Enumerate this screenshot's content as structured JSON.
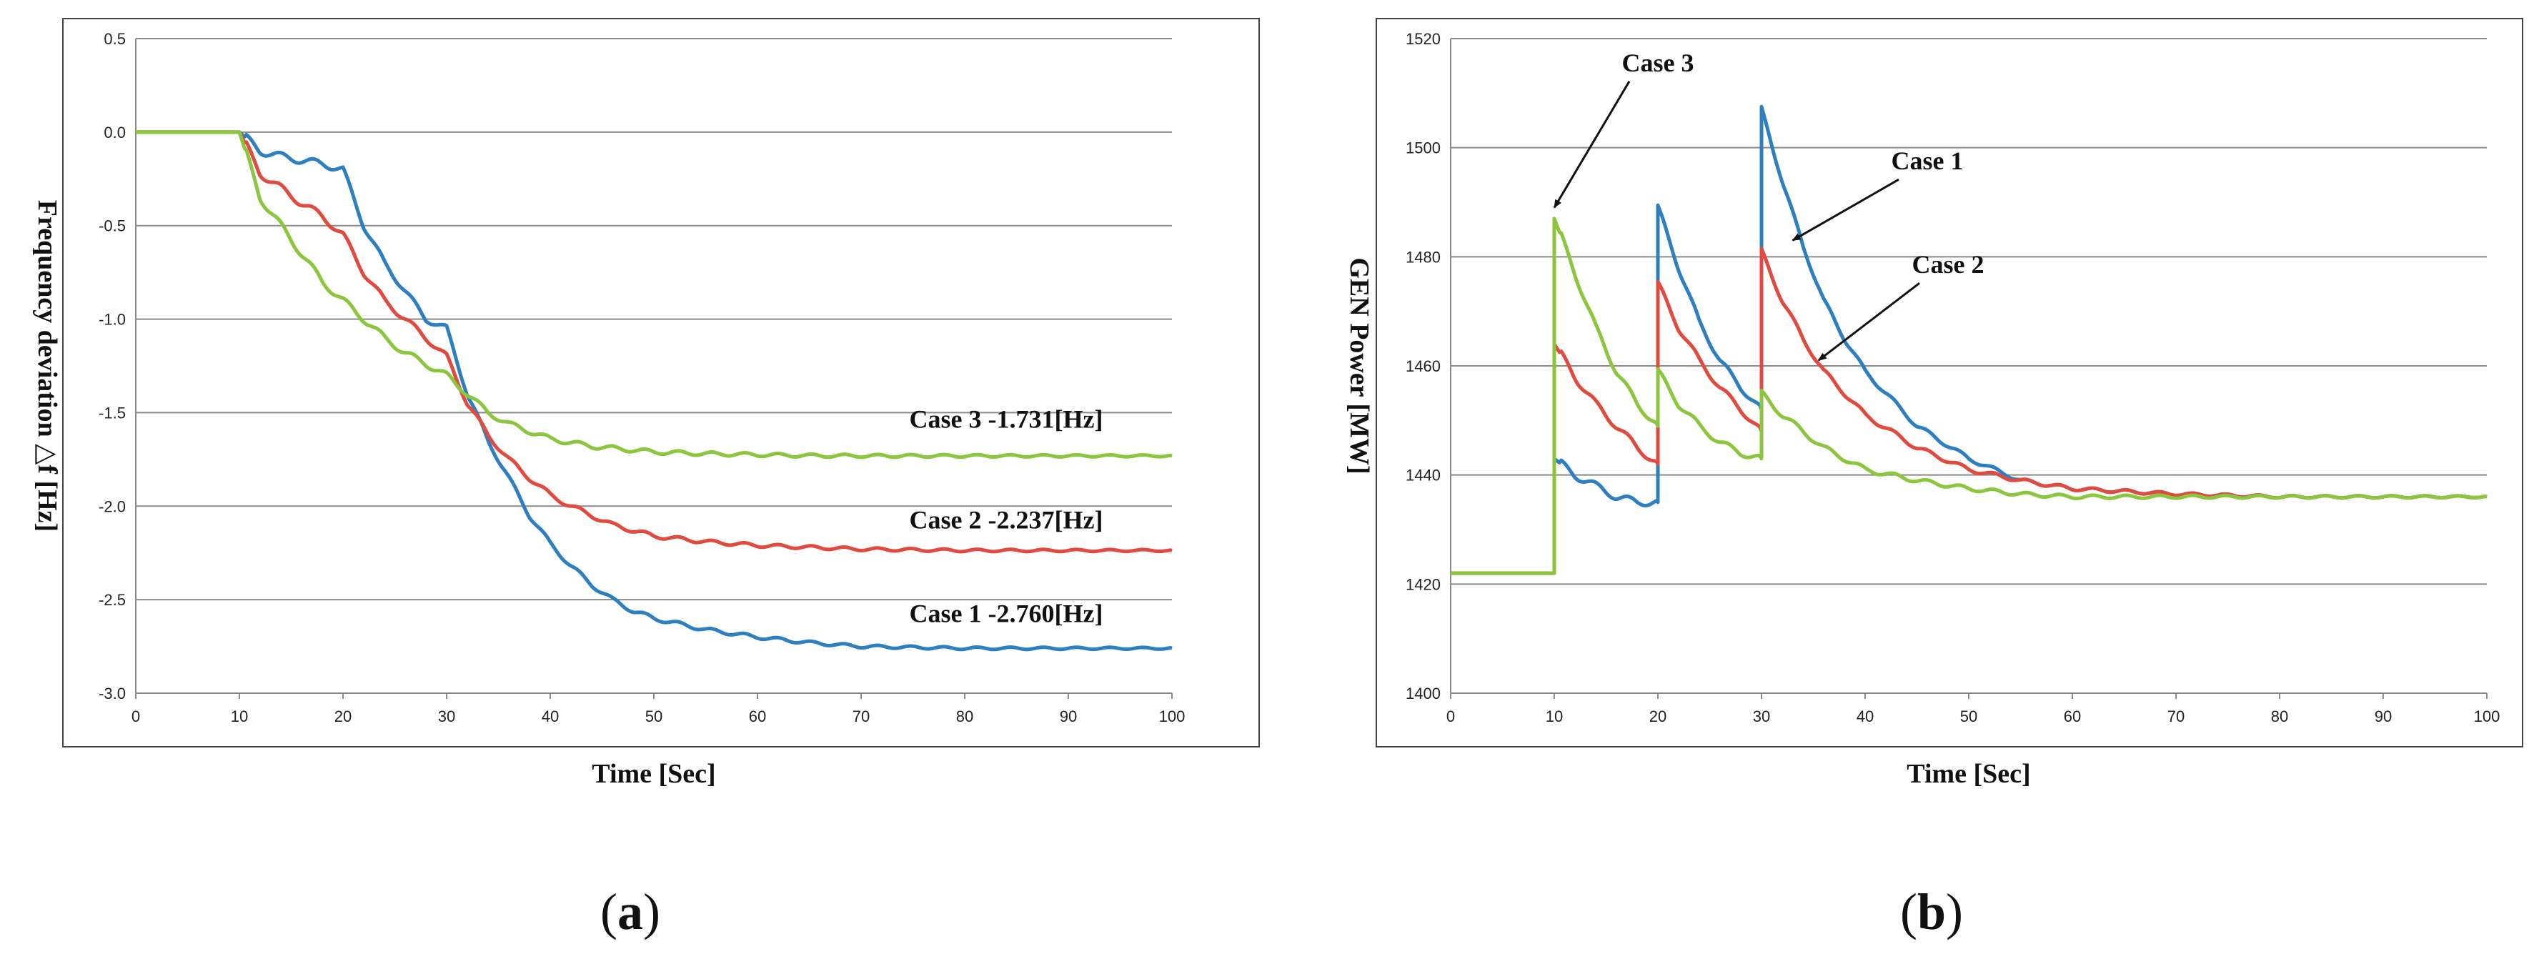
{
  "chart_data": [
    {
      "type": "line",
      "panel_label": "(a)",
      "panel_letter": "a",
      "title": "",
      "xlabel": "Time [Sec]",
      "ylabel": "Frequency deviation △f [Hz]",
      "xlim": [
        0,
        100
      ],
      "ylim": [
        -3.0,
        0.5
      ],
      "x_ticks": [
        0,
        10,
        20,
        30,
        40,
        50,
        60,
        70,
        80,
        90,
        100
      ],
      "y_ticks": [
        0.5,
        0.0,
        -0.5,
        -1.0,
        -1.5,
        -2.0,
        -2.5,
        -3.0
      ],
      "y_tick_labels": [
        "0.5",
        "0.0",
        "-0.5",
        "-1.0",
        "-1.5",
        "-2.0",
        "-2.5",
        "-3.0"
      ],
      "grid": "horizontal",
      "series": [
        {
          "name": "Case 1",
          "color": "#2E7FC0",
          "x": [
            0,
            10,
            12,
            14,
            16,
            18,
            20,
            22,
            24,
            26,
            28,
            30,
            32,
            34,
            36,
            38,
            40,
            42,
            44,
            46,
            48,
            50,
            55,
            60,
            65,
            70,
            80,
            90,
            100
          ],
          "values": [
            0,
            0,
            -0.1,
            -0.13,
            -0.15,
            -0.17,
            -0.2,
            -0.5,
            -0.7,
            -0.85,
            -1.0,
            -1.05,
            -1.4,
            -1.65,
            -1.85,
            -2.05,
            -2.2,
            -2.32,
            -2.42,
            -2.5,
            -2.56,
            -2.6,
            -2.66,
            -2.7,
            -2.73,
            -2.75,
            -2.76,
            -2.76,
            -2.76
          ]
        },
        {
          "name": "Case 2",
          "color": "#E04A3F",
          "x": [
            0,
            10,
            12,
            14,
            16,
            18,
            20,
            22,
            24,
            26,
            28,
            30,
            32,
            34,
            36,
            38,
            40,
            42,
            44,
            46,
            48,
            50,
            55,
            60,
            65,
            70,
            80,
            90,
            100
          ],
          "values": [
            0,
            0,
            -0.22,
            -0.3,
            -0.38,
            -0.45,
            -0.55,
            -0.75,
            -0.9,
            -1.0,
            -1.1,
            -1.2,
            -1.45,
            -1.62,
            -1.75,
            -1.85,
            -1.94,
            -2.0,
            -2.05,
            -2.1,
            -2.13,
            -2.16,
            -2.19,
            -2.21,
            -2.22,
            -2.23,
            -2.237,
            -2.237,
            -2.237
          ]
        },
        {
          "name": "Case 3",
          "color": "#8CC63E",
          "x": [
            0,
            10,
            12,
            14,
            16,
            18,
            20,
            22,
            24,
            26,
            28,
            30,
            32,
            34,
            36,
            38,
            40,
            42,
            44,
            46,
            48,
            50,
            55,
            60,
            65,
            70,
            80,
            90,
            100
          ],
          "values": [
            0,
            0,
            -0.35,
            -0.5,
            -0.65,
            -0.8,
            -0.9,
            -1.0,
            -1.1,
            -1.18,
            -1.24,
            -1.3,
            -1.4,
            -1.5,
            -1.56,
            -1.6,
            -1.64,
            -1.66,
            -1.68,
            -1.69,
            -1.7,
            -1.71,
            -1.72,
            -1.725,
            -1.73,
            -1.731,
            -1.731,
            -1.731,
            -1.731
          ]
        }
      ],
      "annotations": [
        {
          "text": "Case 3  -1.731[Hz]",
          "x": 84,
          "y": -1.58
        },
        {
          "text": "Case 2  -2.237[Hz]",
          "x": 84,
          "y": -2.12
        },
        {
          "text": "Case 1  -2.760[Hz]",
          "x": 84,
          "y": -2.62
        }
      ]
    },
    {
      "type": "line",
      "panel_label": "(b)",
      "panel_letter": "b",
      "title": "",
      "xlabel": "Time [Sec]",
      "ylabel": "GEN Power [MW]",
      "xlim": [
        0,
        100
      ],
      "ylim": [
        1400,
        1520
      ],
      "x_ticks": [
        0,
        10,
        20,
        30,
        40,
        50,
        60,
        70,
        80,
        90,
        100
      ],
      "y_ticks": [
        1520,
        1500,
        1480,
        1460,
        1440,
        1420,
        1400
      ],
      "y_tick_labels": [
        "1520",
        "1500",
        "1480",
        "1460",
        "1440",
        "1420",
        "1400"
      ],
      "grid": "horizontal",
      "series": [
        {
          "name": "Case 1",
          "color": "#2E7FC0",
          "x": [
            0,
            10,
            10,
            12,
            14,
            16,
            18,
            20,
            20,
            22,
            24,
            26,
            28,
            30,
            30,
            32,
            34,
            36,
            38,
            40,
            45,
            50,
            55,
            60,
            65,
            70,
            80,
            90,
            100
          ],
          "values": [
            1422,
            1422,
            1443,
            1440,
            1438,
            1436,
            1435,
            1435,
            1489,
            1478,
            1468,
            1461,
            1456,
            1452,
            1507,
            1494,
            1482,
            1472,
            1465,
            1459,
            1449,
            1443,
            1439,
            1437.5,
            1437,
            1436.5,
            1436,
            1436,
            1436
          ]
        },
        {
          "name": "Case 2",
          "color": "#E04A3F",
          "x": [
            0,
            10,
            10,
            12,
            14,
            16,
            18,
            20,
            20,
            22,
            24,
            26,
            28,
            30,
            30,
            32,
            34,
            36,
            38,
            40,
            45,
            50,
            55,
            60,
            65,
            70,
            80,
            90,
            100
          ],
          "values": [
            1422,
            1422,
            1464,
            1458,
            1453,
            1449,
            1445,
            1442,
            1475,
            1467,
            1461,
            1456,
            1452,
            1448,
            1481,
            1472,
            1465,
            1459,
            1455,
            1451,
            1445,
            1441,
            1439,
            1437.5,
            1437,
            1436.5,
            1436,
            1436,
            1436
          ]
        },
        {
          "name": "Case 3",
          "color": "#8CC63E",
          "x": [
            0,
            10,
            10,
            12,
            14,
            16,
            18,
            20,
            20,
            22,
            24,
            26,
            28,
            30,
            30,
            32,
            34,
            36,
            38,
            40,
            45,
            50,
            55,
            60,
            65,
            70,
            80,
            90,
            100
          ],
          "values": [
            1422,
            1422,
            1487,
            1477,
            1467,
            1459,
            1453,
            1449,
            1459,
            1453,
            1449,
            1446,
            1444,
            1443,
            1455,
            1451,
            1448,
            1445,
            1443,
            1441,
            1439,
            1437.5,
            1436.5,
            1436,
            1436,
            1436,
            1436,
            1436,
            1436
          ]
        }
      ],
      "annotations": [
        {
          "text": "Case 3",
          "x": 20,
          "y": 1514,
          "arrow_to": [
            10,
            1489
          ]
        },
        {
          "text": "Case 1",
          "x": 46,
          "y": 1496,
          "arrow_to": [
            33,
            1483
          ]
        },
        {
          "text": "Case 2",
          "x": 48,
          "y": 1477,
          "arrow_to": [
            35.5,
            1461
          ]
        }
      ]
    }
  ]
}
